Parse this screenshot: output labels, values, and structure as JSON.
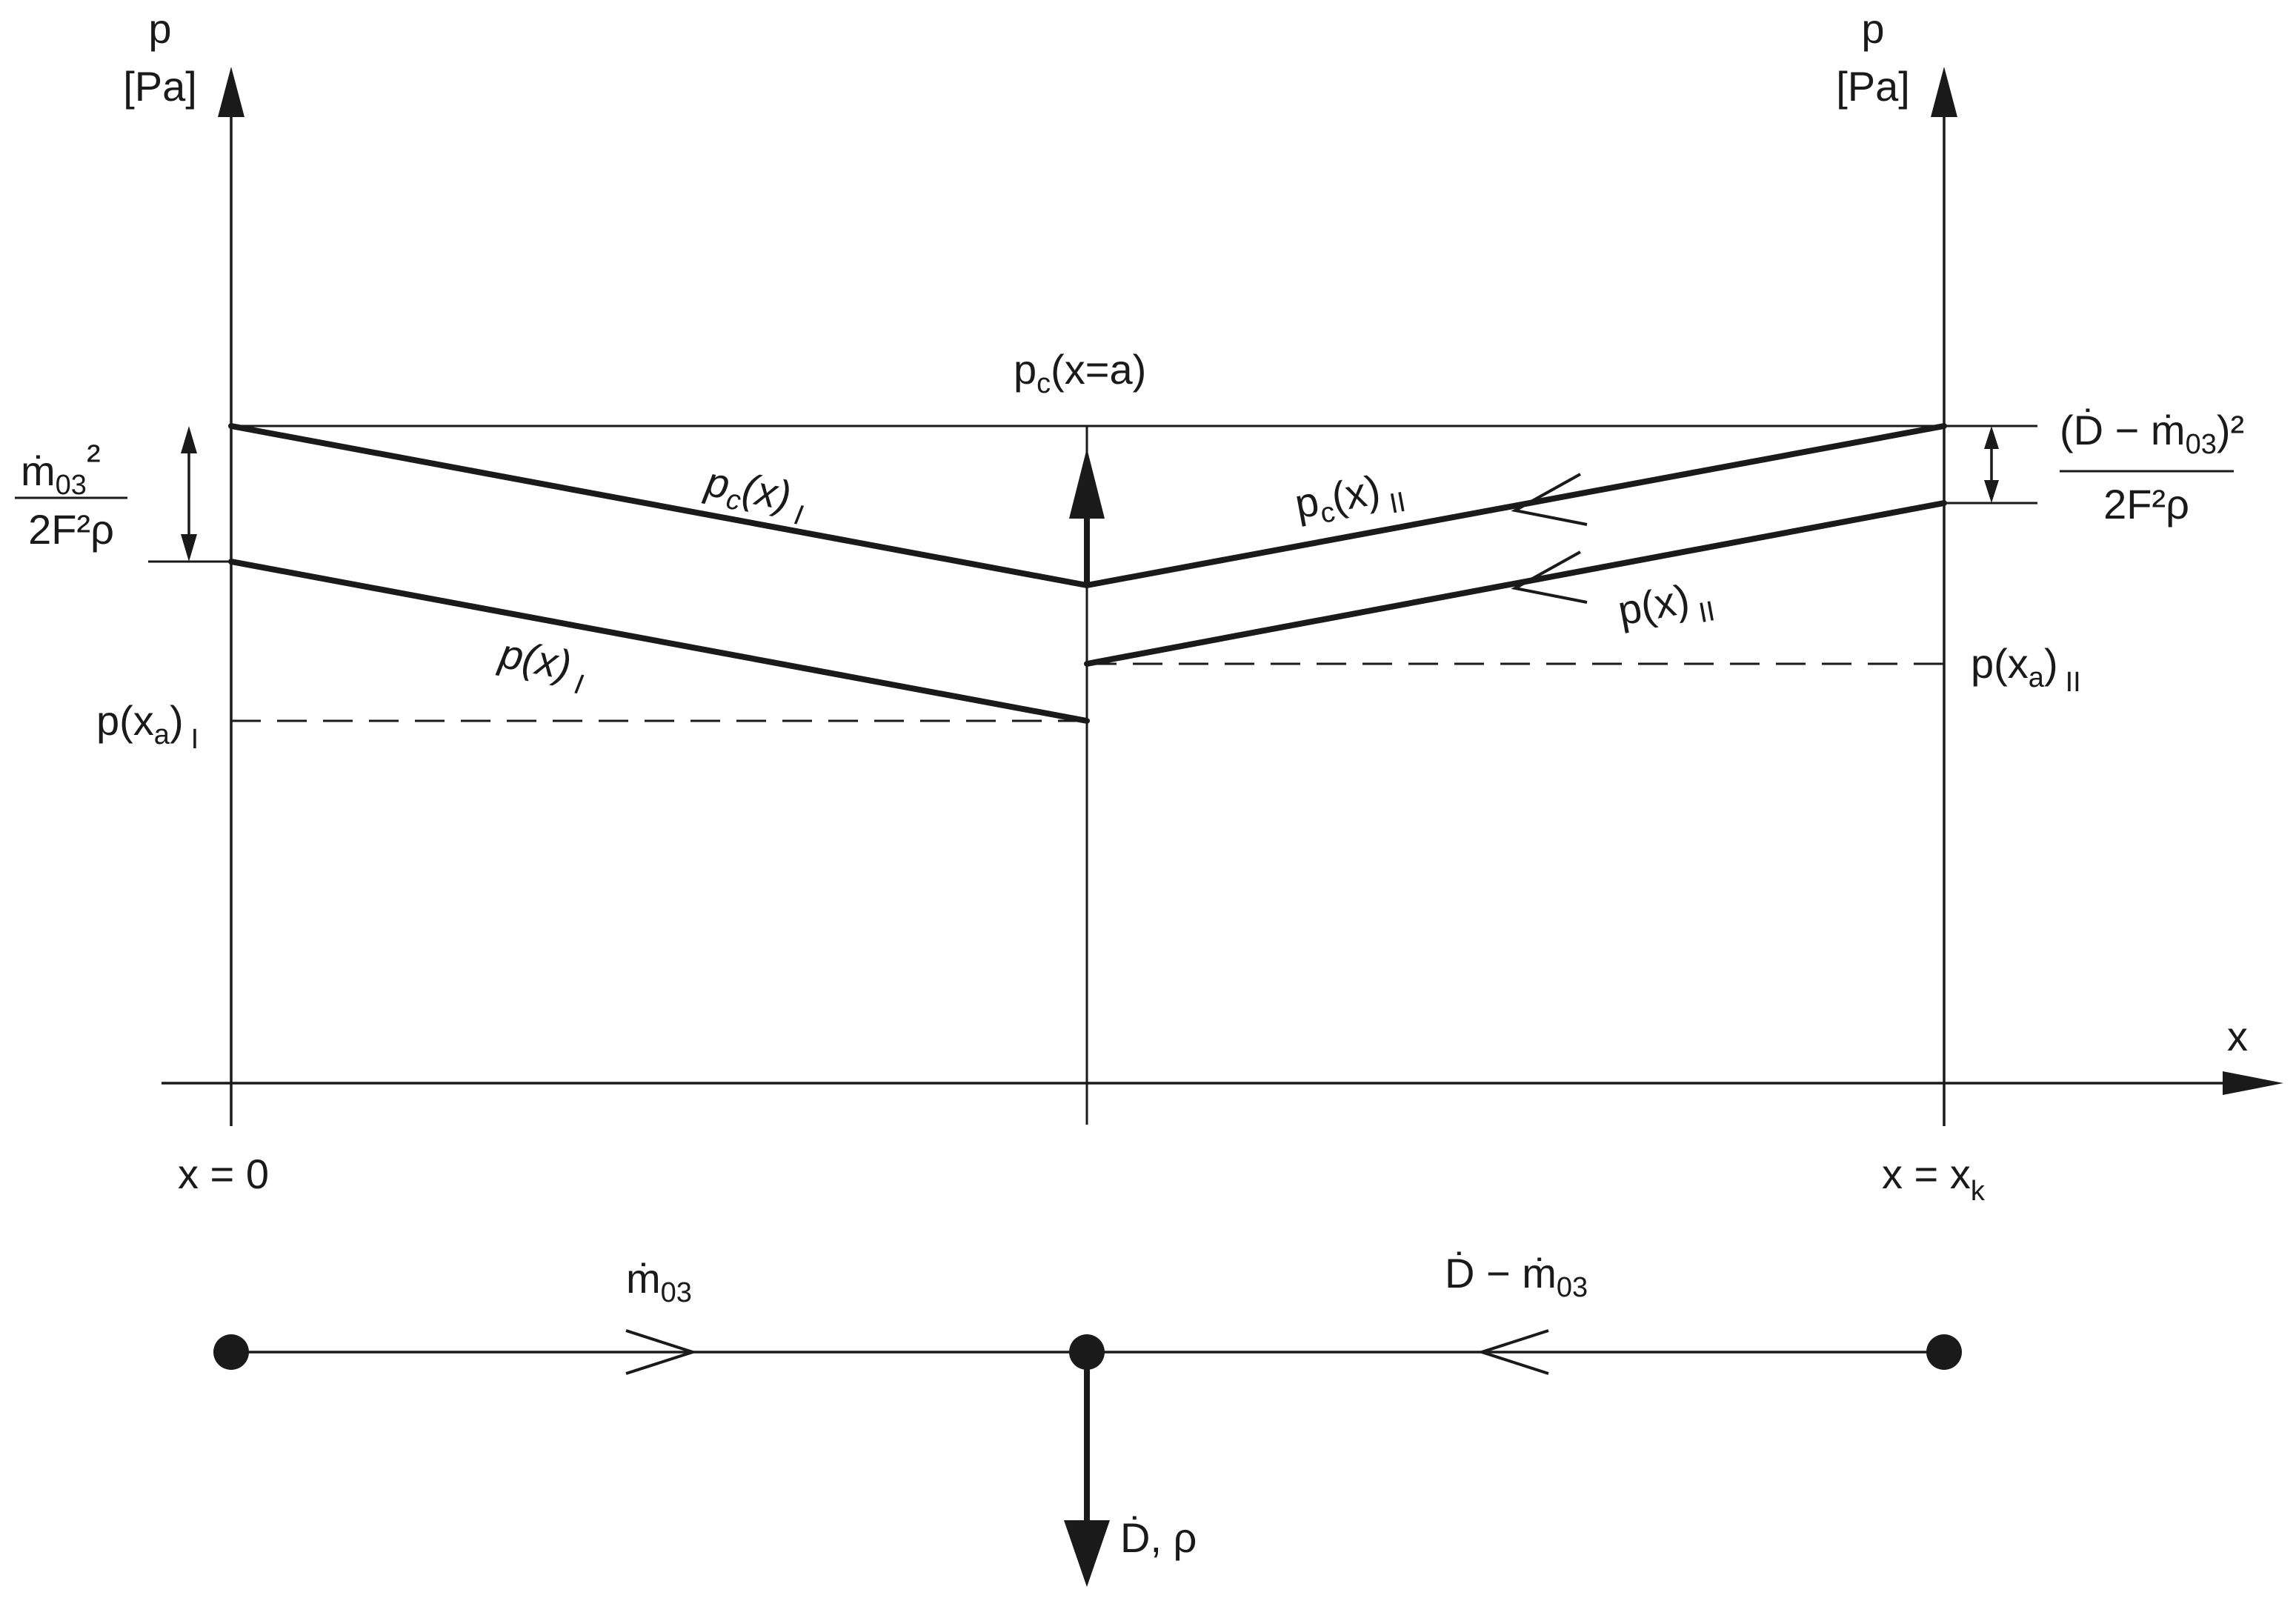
{
  "axes": {
    "left_y_label": "p",
    "left_y_unit": "[Pa]",
    "right_y_label": "p",
    "right_y_unit": "[Pa]",
    "x_label": "x",
    "x_start_label": "x = 0",
    "x_end_label_main": "x = x",
    "x_end_label_sub": "k"
  },
  "curves": {
    "pc_I": {
      "main": "p",
      "sub": "c",
      "tail": "(x)",
      "roman": "I"
    },
    "p_I": {
      "main": "p(x)",
      "roman": "I"
    },
    "pc_II": {
      "main": "p",
      "sub": "c",
      "tail": "(x)",
      "roman": "II"
    },
    "p_II": {
      "main": "p(x)",
      "roman": "II"
    }
  },
  "annotations": {
    "pc_a": {
      "main": "p",
      "sub": "c",
      "tail": "(x=a)"
    },
    "pxa_I": {
      "main": "p(x",
      "sub": "a",
      "tail": ")",
      "roman": "I"
    },
    "pxa_II": {
      "main": "p(x",
      "sub": "a",
      "tail": ")",
      "roman": "II"
    },
    "left_fraction": {
      "num_main": "ṁ",
      "num_sub": "03",
      "num_sup": "²",
      "den": "2F²ρ"
    },
    "right_fraction": {
      "num_a": "(Ḋ − ṁ",
      "num_sub": "03",
      "num_b": ")²",
      "den": "2F²ρ"
    }
  },
  "flow": {
    "left_label_main": "ṁ",
    "left_label_sub": "03",
    "right_label_main": "Ḋ − ṁ",
    "right_label_sub": "03",
    "outflow_label": "Ḋ, ρ"
  }
}
